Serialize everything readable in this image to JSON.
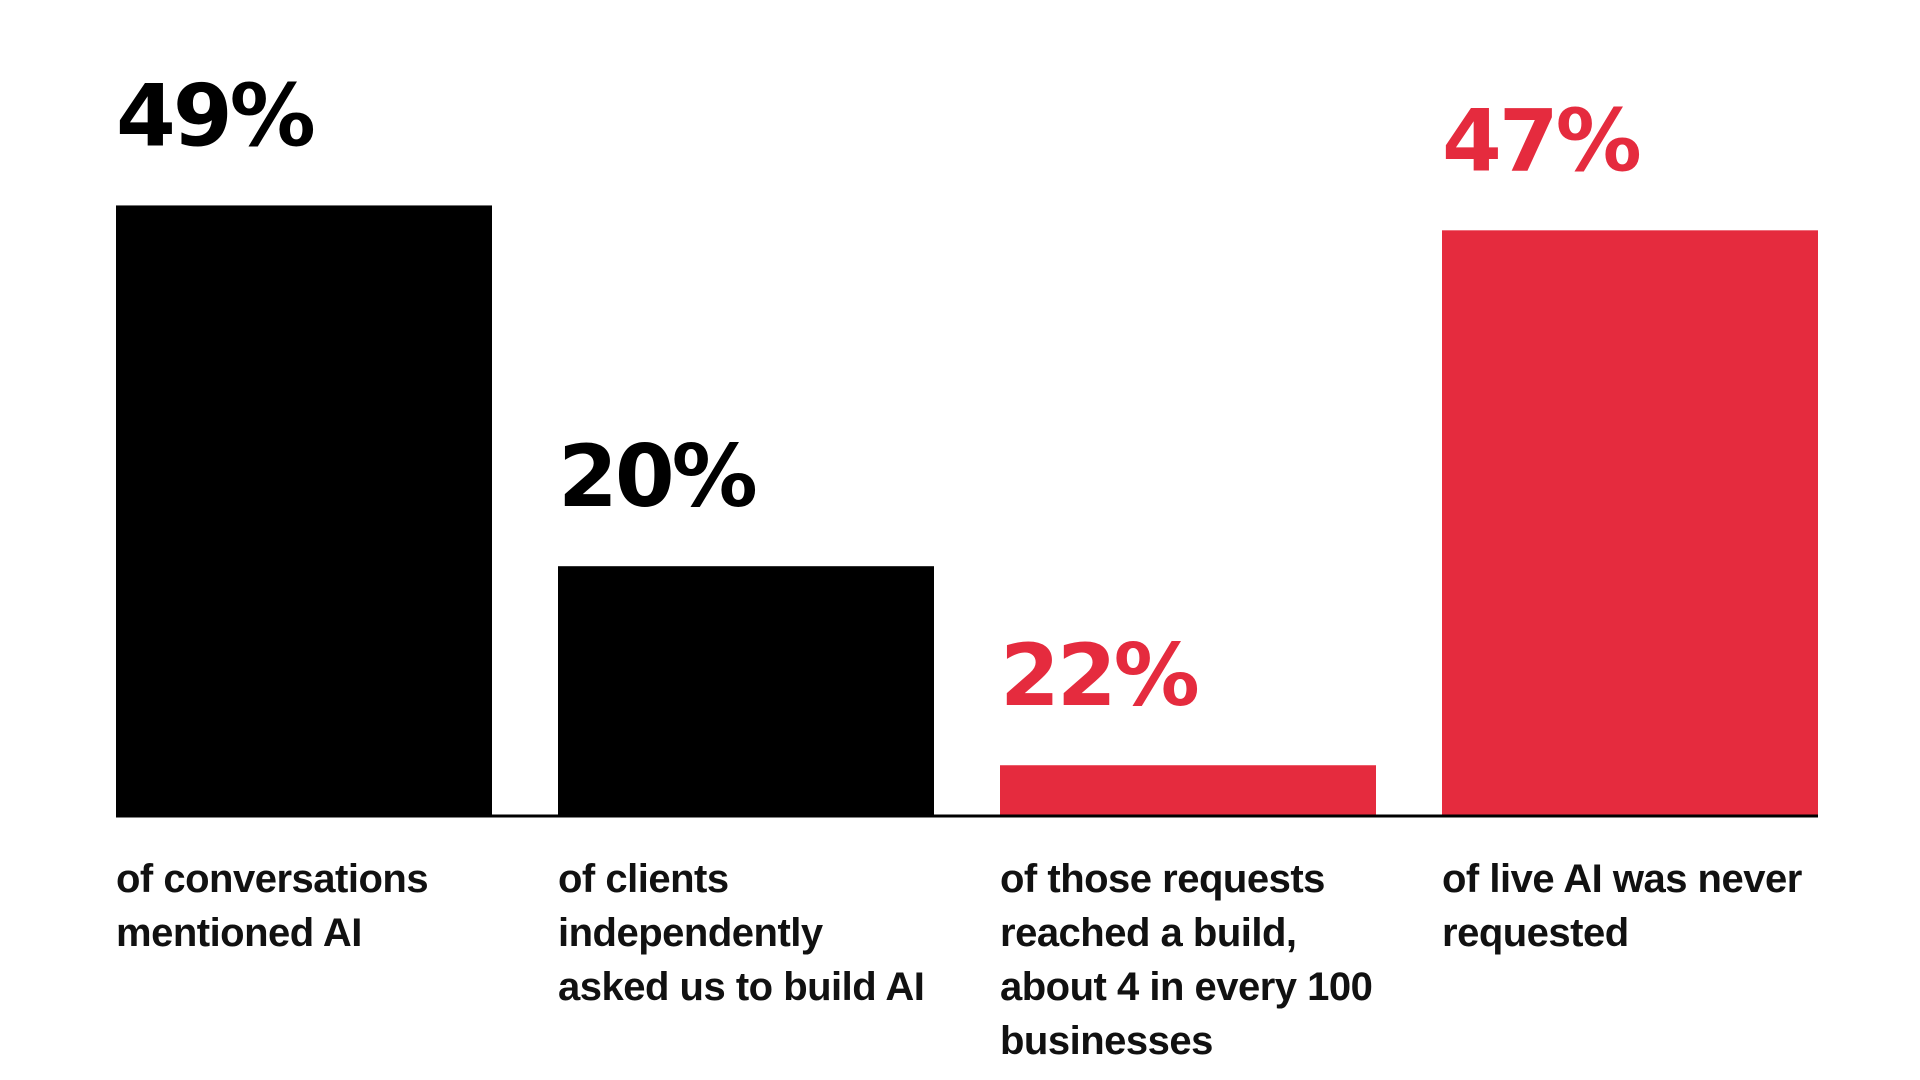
{
  "colors": {
    "black": "#000000",
    "red": "#E52B3E",
    "baseline": "#000000"
  },
  "chart_data": {
    "type": "bar",
    "title": "",
    "xlabel": "",
    "ylabel": "",
    "ylim": [
      0,
      50
    ],
    "grid": false,
    "legend": "none",
    "bars": [
      {
        "value": 49,
        "value_label": "49%",
        "color": "#000000",
        "label": "of conversations mentioned AI"
      },
      {
        "value": 20,
        "value_label": "20%",
        "color": "#000000",
        "label": "of clients independently asked us to build AI"
      },
      {
        "value": 22,
        "value_label": "22%",
        "color": "#E52B3E",
        "label": "of those requests reached a build, about 4 in every 100 businesses",
        "bar_value": 4
      },
      {
        "value": 47,
        "value_label": "47%",
        "color": "#E52B3E",
        "label": "of live AI was never requested"
      }
    ]
  }
}
